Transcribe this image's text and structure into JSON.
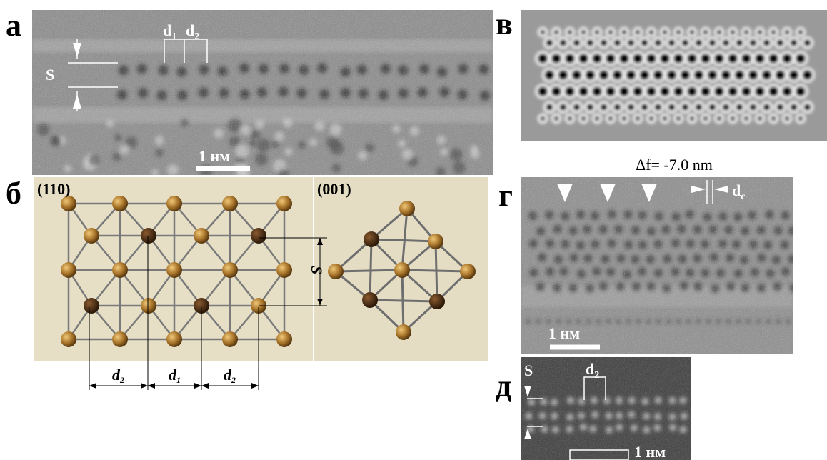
{
  "panel_a": {
    "label": "а",
    "s": "S",
    "d1": {
      "base": "d",
      "sub": "1"
    },
    "d2": {
      "base": "d",
      "sub": "2"
    },
    "scale_bar": "1 нм"
  },
  "panel_b": {
    "label": "б",
    "view_110": "(110)",
    "view_001": "(001)",
    "s": "S",
    "d2_left": {
      "base": "d",
      "sub": "2"
    },
    "d1": {
      "base": "d",
      "sub": "1"
    },
    "d2_right": {
      "base": "d",
      "sub": "2"
    }
  },
  "panel_v": {
    "label": "в",
    "caption": "Δf= -7.0 nm"
  },
  "panel_g": {
    "label": "г",
    "dc": {
      "base": "d",
      "sub": "c"
    },
    "scale_bar": "1 нм"
  },
  "panel_d": {
    "label": "д",
    "s": "S",
    "d2": {
      "base": "d",
      "sub": "2"
    },
    "scale_bar": "1 нм"
  }
}
